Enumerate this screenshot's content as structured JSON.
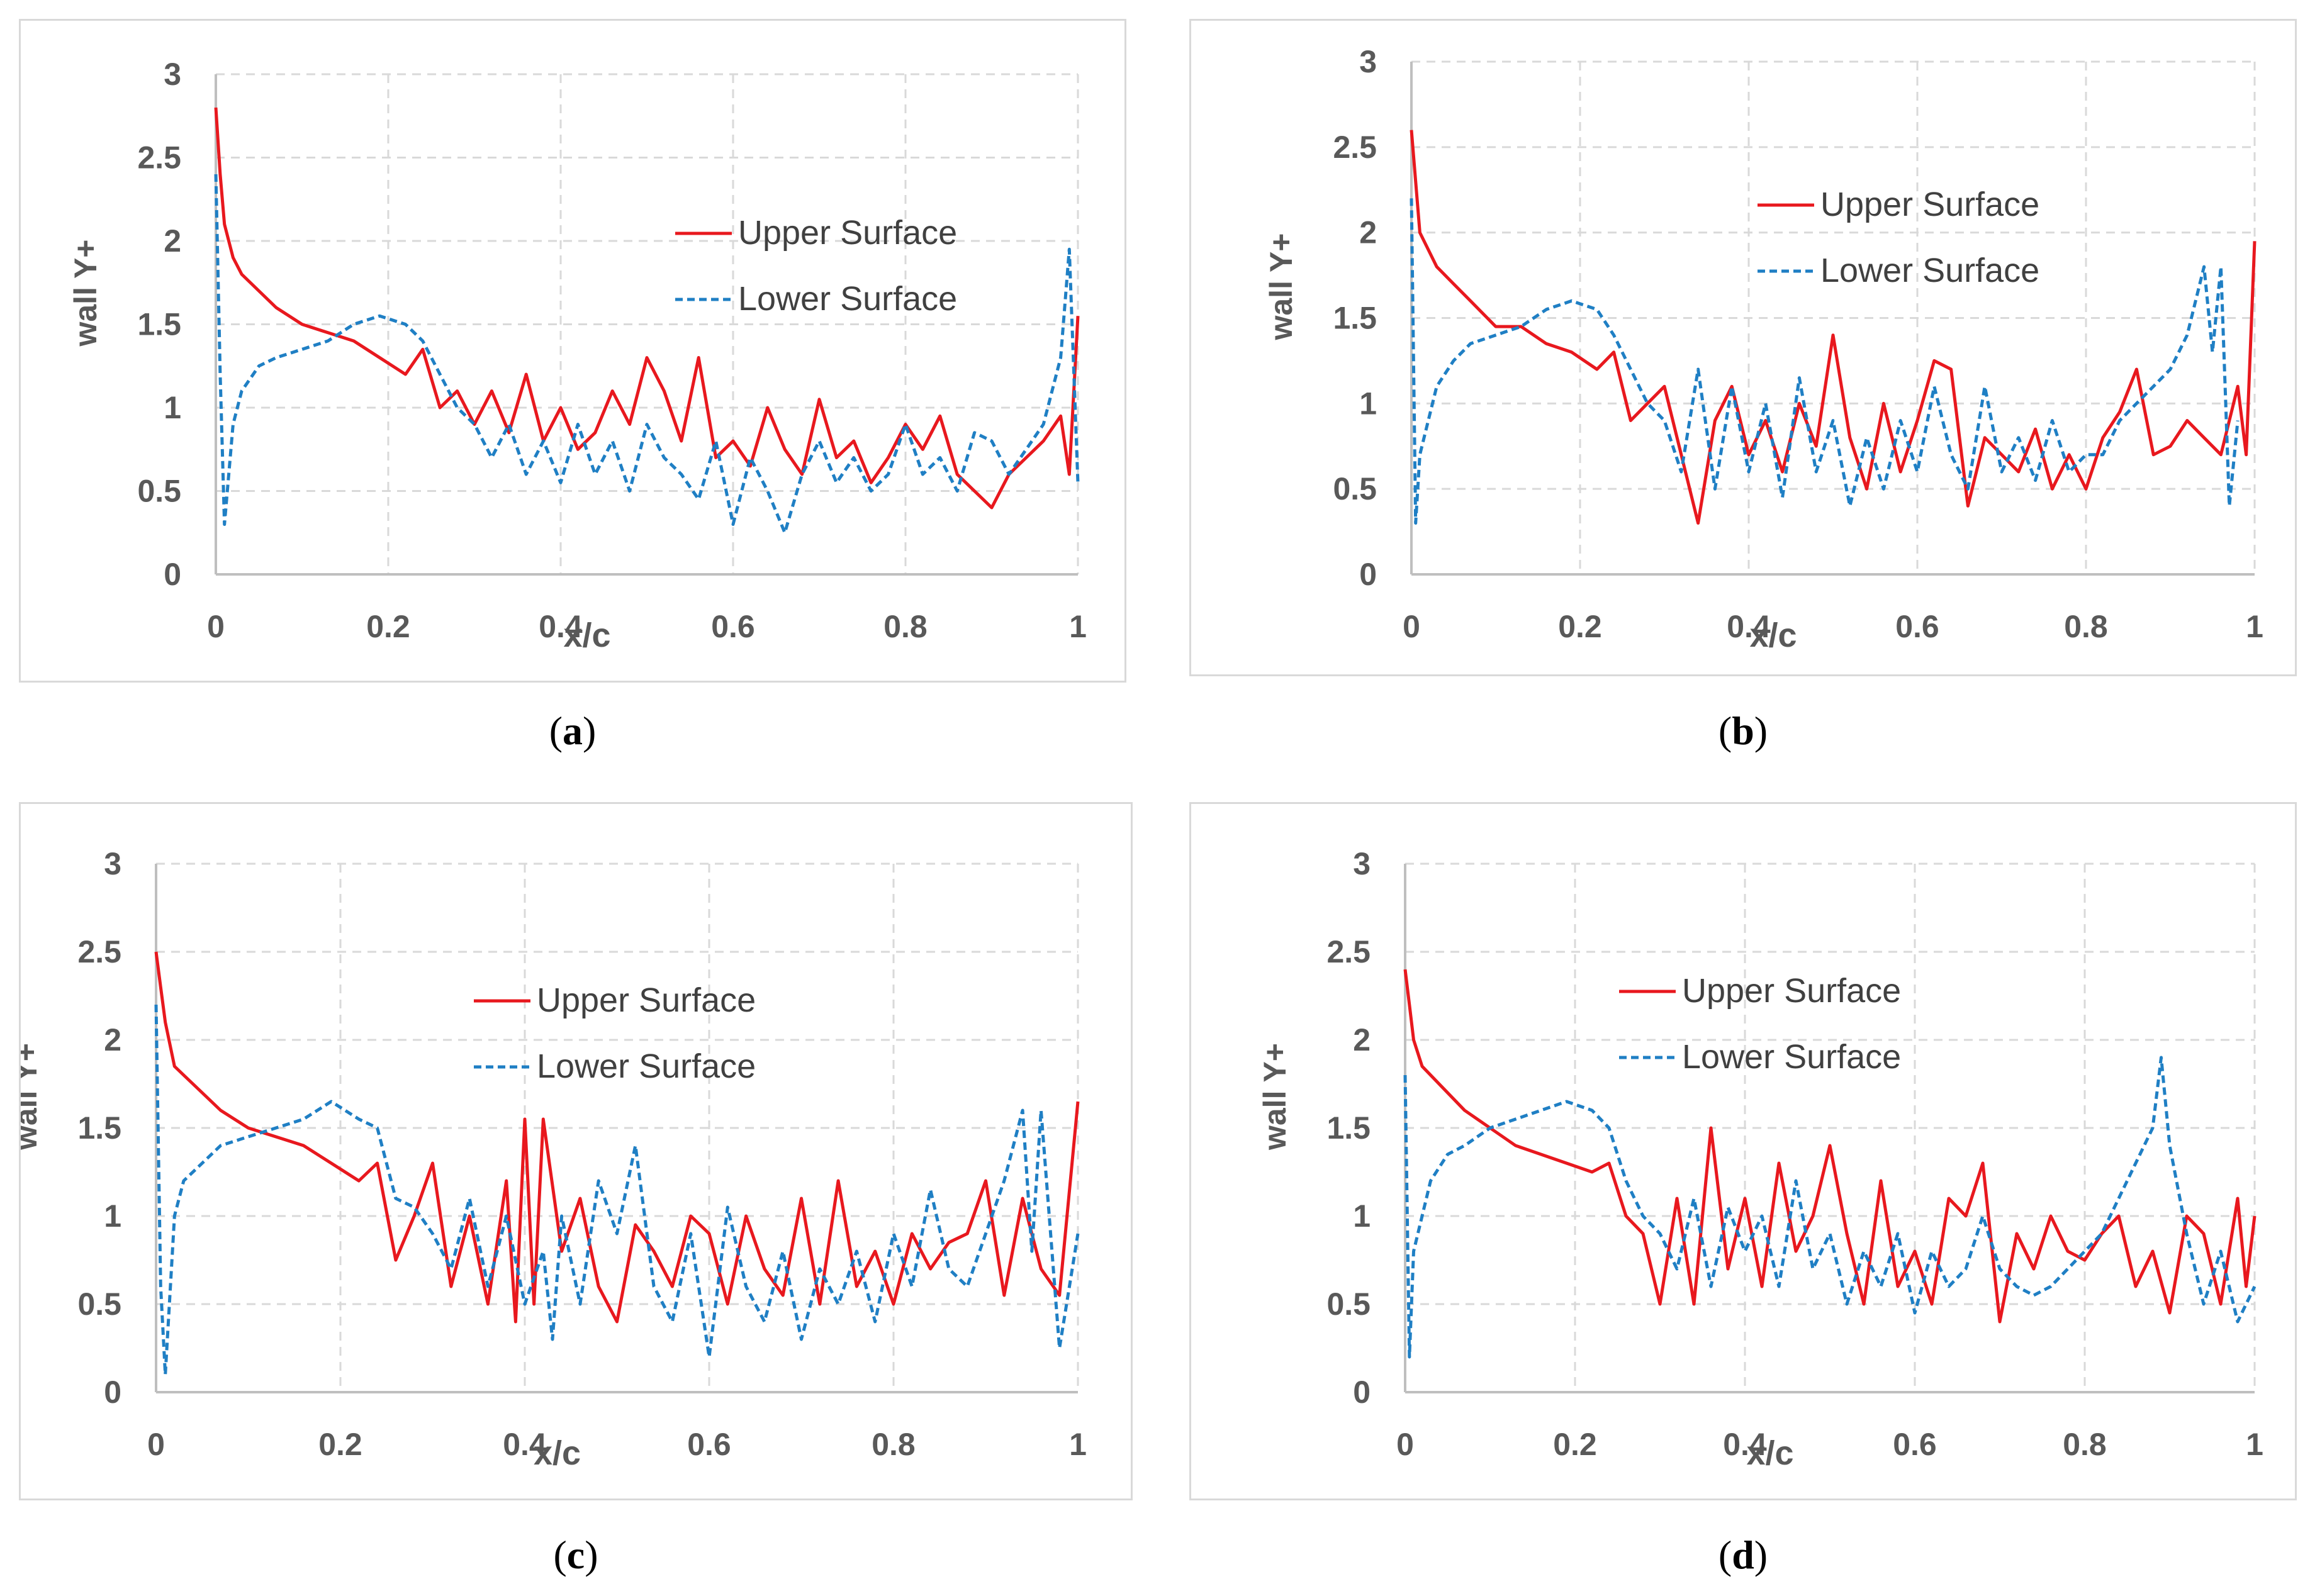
{
  "captions": [
    "(a)",
    "(b)",
    "(c)",
    "(d)"
  ],
  "colors": {
    "upper": "#e8181e",
    "lower": "#1f7fc4",
    "grid": "#d9d9d9",
    "axis": "#bfbfbf",
    "text": "#595959"
  },
  "chart_data": [
    {
      "id": "a",
      "type": "line",
      "xlabel": "x/c",
      "ylabel": "wall Y+",
      "xlim": [
        0,
        1
      ],
      "ylim": [
        0,
        3
      ],
      "xticks": [
        "0",
        "0.2",
        "0.4",
        "0.6",
        "0.8",
        "1"
      ],
      "yticks": [
        "0",
        "0.5",
        "1",
        "1.5",
        "2",
        "2.5",
        "3"
      ],
      "legend": [
        "Upper Surface",
        "Lower Surface"
      ],
      "legend_position": "upper-right",
      "series": [
        {
          "name": "Upper Surface",
          "style": "solid",
          "x": [
            0,
            0.005,
            0.01,
            0.02,
            0.03,
            0.05,
            0.07,
            0.1,
            0.13,
            0.16,
            0.19,
            0.22,
            0.24,
            0.26,
            0.28,
            0.3,
            0.32,
            0.34,
            0.36,
            0.38,
            0.4,
            0.42,
            0.44,
            0.46,
            0.48,
            0.5,
            0.52,
            0.54,
            0.56,
            0.58,
            0.6,
            0.62,
            0.64,
            0.66,
            0.68,
            0.7,
            0.72,
            0.74,
            0.76,
            0.78,
            0.8,
            0.82,
            0.84,
            0.86,
            0.88,
            0.9,
            0.92,
            0.94,
            0.96,
            0.98,
            0.99,
            1.0
          ],
          "y": [
            2.8,
            2.4,
            2.1,
            1.9,
            1.8,
            1.7,
            1.6,
            1.5,
            1.45,
            1.4,
            1.3,
            1.2,
            1.35,
            1.0,
            1.1,
            0.9,
            1.1,
            0.85,
            1.2,
            0.8,
            1.0,
            0.75,
            0.85,
            1.1,
            0.9,
            1.3,
            1.1,
            0.8,
            1.3,
            0.7,
            0.8,
            0.65,
            1.0,
            0.75,
            0.6,
            1.05,
            0.7,
            0.8,
            0.55,
            0.7,
            0.9,
            0.75,
            0.95,
            0.6,
            0.5,
            0.4,
            0.6,
            0.7,
            0.8,
            0.95,
            0.6,
            1.55
          ]
        },
        {
          "name": "Lower Surface",
          "style": "dashed",
          "x": [
            0,
            0.005,
            0.01,
            0.02,
            0.03,
            0.05,
            0.07,
            0.1,
            0.13,
            0.16,
            0.19,
            0.22,
            0.24,
            0.26,
            0.28,
            0.3,
            0.32,
            0.34,
            0.36,
            0.38,
            0.4,
            0.42,
            0.44,
            0.46,
            0.48,
            0.5,
            0.52,
            0.54,
            0.56,
            0.58,
            0.6,
            0.62,
            0.64,
            0.66,
            0.68,
            0.7,
            0.72,
            0.74,
            0.76,
            0.78,
            0.8,
            0.82,
            0.84,
            0.86,
            0.88,
            0.9,
            0.92,
            0.94,
            0.96,
            0.98,
            0.99,
            1.0
          ],
          "y": [
            2.4,
            1.2,
            0.3,
            0.9,
            1.1,
            1.25,
            1.3,
            1.35,
            1.4,
            1.5,
            1.55,
            1.5,
            1.4,
            1.2,
            1.0,
            0.9,
            0.7,
            0.9,
            0.6,
            0.8,
            0.55,
            0.9,
            0.6,
            0.8,
            0.5,
            0.9,
            0.7,
            0.6,
            0.45,
            0.8,
            0.3,
            0.7,
            0.5,
            0.25,
            0.6,
            0.8,
            0.55,
            0.7,
            0.5,
            0.6,
            0.9,
            0.6,
            0.7,
            0.5,
            0.85,
            0.8,
            0.6,
            0.75,
            0.9,
            1.3,
            1.95,
            0.55
          ]
        }
      ]
    },
    {
      "id": "b",
      "type": "line",
      "xlabel": "x/c",
      "ylabel": "wall Y+",
      "xlim": [
        0,
        1
      ],
      "ylim": [
        0,
        3
      ],
      "xticks": [
        "0",
        "0.2",
        "0.4",
        "0.6",
        "0.8",
        "1"
      ],
      "yticks": [
        "0",
        "0.5",
        "1",
        "1.5",
        "2",
        "2.5",
        "3"
      ],
      "legend": [
        "Upper Surface",
        "Lower Surface"
      ],
      "legend_position": "upper-right",
      "series": [
        {
          "name": "Upper Surface",
          "style": "solid",
          "x": [
            0,
            0.005,
            0.01,
            0.02,
            0.03,
            0.05,
            0.07,
            0.1,
            0.13,
            0.16,
            0.19,
            0.22,
            0.24,
            0.26,
            0.28,
            0.3,
            0.32,
            0.34,
            0.36,
            0.38,
            0.4,
            0.42,
            0.44,
            0.46,
            0.48,
            0.5,
            0.52,
            0.54,
            0.56,
            0.58,
            0.6,
            0.62,
            0.64,
            0.66,
            0.68,
            0.7,
            0.72,
            0.74,
            0.76,
            0.78,
            0.8,
            0.82,
            0.84,
            0.86,
            0.88,
            0.9,
            0.92,
            0.94,
            0.96,
            0.98,
            0.99,
            1.0
          ],
          "y": [
            2.6,
            2.3,
            2.0,
            1.9,
            1.8,
            1.7,
            1.6,
            1.45,
            1.45,
            1.35,
            1.3,
            1.2,
            1.3,
            0.9,
            1.0,
            1.1,
            0.7,
            0.3,
            0.9,
            1.1,
            0.7,
            0.9,
            0.6,
            1.0,
            0.75,
            1.4,
            0.8,
            0.5,
            1.0,
            0.6,
            0.9,
            1.25,
            1.2,
            0.4,
            0.8,
            0.7,
            0.6,
            0.85,
            0.5,
            0.7,
            0.5,
            0.8,
            0.95,
            1.2,
            0.7,
            0.75,
            0.9,
            0.8,
            0.7,
            1.1,
            0.7,
            1.95
          ]
        },
        {
          "name": "Lower Surface",
          "style": "dashed",
          "x": [
            0,
            0.005,
            0.01,
            0.02,
            0.03,
            0.05,
            0.07,
            0.1,
            0.13,
            0.16,
            0.19,
            0.22,
            0.24,
            0.26,
            0.28,
            0.3,
            0.32,
            0.34,
            0.36,
            0.38,
            0.4,
            0.42,
            0.44,
            0.46,
            0.48,
            0.5,
            0.52,
            0.54,
            0.56,
            0.58,
            0.6,
            0.62,
            0.64,
            0.66,
            0.68,
            0.7,
            0.72,
            0.74,
            0.76,
            0.78,
            0.8,
            0.82,
            0.84,
            0.86,
            0.88,
            0.9,
            0.92,
            0.94,
            0.95,
            0.96,
            0.97,
            0.98
          ],
          "y": [
            2.2,
            0.3,
            0.7,
            0.9,
            1.1,
            1.25,
            1.35,
            1.4,
            1.45,
            1.55,
            1.6,
            1.55,
            1.4,
            1.2,
            1.0,
            0.9,
            0.6,
            1.2,
            0.5,
            1.1,
            0.6,
            1.0,
            0.45,
            1.15,
            0.6,
            0.9,
            0.4,
            0.8,
            0.5,
            0.9,
            0.6,
            1.1,
            0.7,
            0.5,
            1.1,
            0.6,
            0.8,
            0.55,
            0.9,
            0.6,
            0.7,
            0.7,
            0.9,
            1.0,
            1.1,
            1.2,
            1.4,
            1.8,
            1.3,
            1.8,
            0.4,
            0.9
          ]
        }
      ]
    },
    {
      "id": "c",
      "type": "line",
      "xlabel": "x/c",
      "ylabel": "wall Y+",
      "xlim": [
        0,
        1
      ],
      "ylim": [
        0,
        3
      ],
      "xticks": [
        "0",
        "0.2",
        "0.4",
        "0.6",
        "0.8",
        "1"
      ],
      "yticks": [
        "0",
        "0.5",
        "1",
        "1.5",
        "2",
        "2.5",
        "3"
      ],
      "legend": [
        "Upper Surface",
        "Lower Surface"
      ],
      "legend_position": "upper-center",
      "series": [
        {
          "name": "Upper Surface",
          "style": "solid",
          "x": [
            0,
            0.005,
            0.01,
            0.02,
            0.03,
            0.05,
            0.07,
            0.1,
            0.13,
            0.16,
            0.19,
            0.22,
            0.24,
            0.26,
            0.28,
            0.3,
            0.32,
            0.34,
            0.36,
            0.38,
            0.39,
            0.4,
            0.41,
            0.42,
            0.44,
            0.46,
            0.48,
            0.5,
            0.52,
            0.54,
            0.56,
            0.58,
            0.6,
            0.62,
            0.64,
            0.66,
            0.68,
            0.7,
            0.72,
            0.74,
            0.76,
            0.78,
            0.8,
            0.82,
            0.84,
            0.86,
            0.88,
            0.9,
            0.92,
            0.94,
            0.96,
            0.98,
            1.0
          ],
          "y": [
            2.5,
            2.3,
            2.1,
            1.85,
            1.8,
            1.7,
            1.6,
            1.5,
            1.45,
            1.4,
            1.3,
            1.2,
            1.3,
            0.75,
            1.0,
            1.3,
            0.6,
            1.0,
            0.5,
            1.2,
            0.4,
            1.55,
            0.5,
            1.55,
            0.8,
            1.1,
            0.6,
            0.4,
            0.95,
            0.8,
            0.6,
            1.0,
            0.9,
            0.5,
            1.0,
            0.7,
            0.55,
            1.1,
            0.5,
            1.2,
            0.6,
            0.8,
            0.5,
            0.9,
            0.7,
            0.85,
            0.9,
            1.2,
            0.55,
            1.1,
            0.7,
            0.55,
            1.65
          ]
        },
        {
          "name": "Lower Surface",
          "style": "dashed",
          "x": [
            0,
            0.005,
            0.01,
            0.02,
            0.03,
            0.05,
            0.07,
            0.1,
            0.13,
            0.16,
            0.19,
            0.22,
            0.24,
            0.26,
            0.28,
            0.3,
            0.32,
            0.34,
            0.36,
            0.38,
            0.4,
            0.42,
            0.43,
            0.44,
            0.46,
            0.48,
            0.5,
            0.52,
            0.54,
            0.56,
            0.58,
            0.6,
            0.62,
            0.64,
            0.66,
            0.68,
            0.7,
            0.72,
            0.74,
            0.76,
            0.78,
            0.8,
            0.82,
            0.84,
            0.86,
            0.88,
            0.9,
            0.92,
            0.94,
            0.95,
            0.96,
            0.98,
            1.0
          ],
          "y": [
            2.2,
            0.6,
            0.1,
            1.0,
            1.2,
            1.3,
            1.4,
            1.45,
            1.5,
            1.55,
            1.65,
            1.55,
            1.5,
            1.1,
            1.05,
            0.9,
            0.7,
            1.1,
            0.6,
            1.0,
            0.5,
            0.8,
            0.3,
            1.0,
            0.5,
            1.2,
            0.9,
            1.4,
            0.6,
            0.4,
            0.9,
            0.2,
            1.05,
            0.6,
            0.4,
            0.8,
            0.3,
            0.7,
            0.5,
            0.8,
            0.4,
            0.9,
            0.6,
            1.15,
            0.7,
            0.6,
            0.9,
            1.2,
            1.6,
            0.8,
            1.6,
            0.25,
            0.9
          ]
        }
      ]
    },
    {
      "id": "d",
      "type": "line",
      "xlabel": "x/c",
      "ylabel": "wall Y+",
      "xlim": [
        0,
        1
      ],
      "ylim": [
        0,
        3
      ],
      "xticks": [
        "0",
        "0.2",
        "0.4",
        "0.6",
        "0.8",
        "1"
      ],
      "yticks": [
        "0",
        "0.5",
        "1",
        "1.5",
        "2",
        "2.5",
        "3"
      ],
      "legend": [
        "Upper Surface",
        "Lower Surface"
      ],
      "legend_position": "upper-right",
      "series": [
        {
          "name": "Upper Surface",
          "style": "solid",
          "x": [
            0,
            0.005,
            0.01,
            0.02,
            0.03,
            0.05,
            0.07,
            0.1,
            0.13,
            0.16,
            0.19,
            0.22,
            0.24,
            0.26,
            0.28,
            0.3,
            0.32,
            0.34,
            0.36,
            0.38,
            0.4,
            0.42,
            0.44,
            0.46,
            0.48,
            0.5,
            0.52,
            0.54,
            0.56,
            0.58,
            0.6,
            0.62,
            0.64,
            0.66,
            0.68,
            0.7,
            0.72,
            0.74,
            0.76,
            0.78,
            0.8,
            0.82,
            0.84,
            0.86,
            0.88,
            0.9,
            0.92,
            0.94,
            0.96,
            0.98,
            0.99,
            1.0
          ],
          "y": [
            2.4,
            2.2,
            2.0,
            1.85,
            1.8,
            1.7,
            1.6,
            1.5,
            1.4,
            1.35,
            1.3,
            1.25,
            1.3,
            1.0,
            0.9,
            0.5,
            1.1,
            0.5,
            1.5,
            0.7,
            1.1,
            0.6,
            1.3,
            0.8,
            1.0,
            1.4,
            0.9,
            0.5,
            1.2,
            0.6,
            0.8,
            0.5,
            1.1,
            1.0,
            1.3,
            0.4,
            0.9,
            0.7,
            1.0,
            0.8,
            0.75,
            0.9,
            1.0,
            0.6,
            0.8,
            0.45,
            1.0,
            0.9,
            0.5,
            1.1,
            0.6,
            1.0
          ]
        },
        {
          "name": "Lower Surface",
          "style": "dashed",
          "x": [
            0,
            0.005,
            0.01,
            0.02,
            0.03,
            0.05,
            0.07,
            0.1,
            0.13,
            0.16,
            0.19,
            0.22,
            0.24,
            0.26,
            0.28,
            0.3,
            0.32,
            0.34,
            0.36,
            0.38,
            0.4,
            0.42,
            0.44,
            0.46,
            0.48,
            0.5,
            0.52,
            0.54,
            0.56,
            0.58,
            0.6,
            0.62,
            0.64,
            0.66,
            0.68,
            0.7,
            0.72,
            0.74,
            0.76,
            0.78,
            0.8,
            0.82,
            0.84,
            0.86,
            0.88,
            0.89,
            0.9,
            0.92,
            0.94,
            0.96,
            0.98,
            1.0
          ],
          "y": [
            1.8,
            0.2,
            0.8,
            1.0,
            1.2,
            1.35,
            1.4,
            1.5,
            1.55,
            1.6,
            1.65,
            1.6,
            1.5,
            1.2,
            1.0,
            0.9,
            0.7,
            1.1,
            0.6,
            1.05,
            0.8,
            1.0,
            0.6,
            1.2,
            0.7,
            0.9,
            0.5,
            0.8,
            0.6,
            0.9,
            0.45,
            0.8,
            0.6,
            0.7,
            1.0,
            0.7,
            0.6,
            0.55,
            0.6,
            0.7,
            0.8,
            0.9,
            1.1,
            1.3,
            1.5,
            1.9,
            1.4,
            0.9,
            0.5,
            0.8,
            0.4,
            0.6
          ]
        }
      ]
    }
  ]
}
